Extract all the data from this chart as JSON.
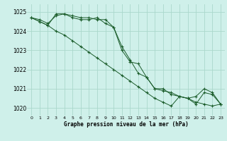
{
  "title": "Graphe pression niveau de la mer (hPa)",
  "background_color": "#cff0ea",
  "grid_color": "#aad8cc",
  "line_color": "#1a5c2a",
  "xlim": [
    -0.5,
    23.5
  ],
  "ylim": [
    1019.6,
    1025.4
  ],
  "yticks": [
    1020,
    1021,
    1022,
    1023,
    1024,
    1025
  ],
  "xticks": [
    0,
    1,
    2,
    3,
    4,
    5,
    6,
    7,
    8,
    9,
    10,
    11,
    12,
    13,
    14,
    15,
    16,
    17,
    18,
    19,
    20,
    21,
    22,
    23
  ],
  "series": [
    [
      1024.7,
      1024.6,
      1024.4,
      1024.8,
      1024.9,
      1024.8,
      1024.7,
      1024.7,
      1024.6,
      1024.6,
      1024.2,
      1023.0,
      1022.4,
      1022.3,
      1021.6,
      1021.0,
      1021.0,
      1020.7,
      1020.6,
      1020.5,
      1020.2,
      1020.8,
      1020.7,
      1020.2
    ],
    [
      1024.7,
      1024.5,
      1024.3,
      1024.9,
      1024.9,
      1024.7,
      1024.6,
      1024.6,
      1024.7,
      1024.4,
      1024.2,
      1023.2,
      1022.5,
      1021.8,
      1021.6,
      1021.0,
      1020.9,
      1020.8,
      1020.6,
      1020.5,
      1020.6,
      1021.0,
      1020.8,
      1020.2
    ],
    [
      1024.7,
      1024.5,
      1024.3,
      1024.0,
      1023.8,
      1023.5,
      1023.2,
      1022.9,
      1022.6,
      1022.3,
      1022.0,
      1021.7,
      1021.4,
      1021.1,
      1020.8,
      1020.5,
      1020.3,
      1020.1,
      1020.6,
      1020.5,
      1020.3,
      1020.2,
      1020.1,
      1020.2
    ]
  ]
}
